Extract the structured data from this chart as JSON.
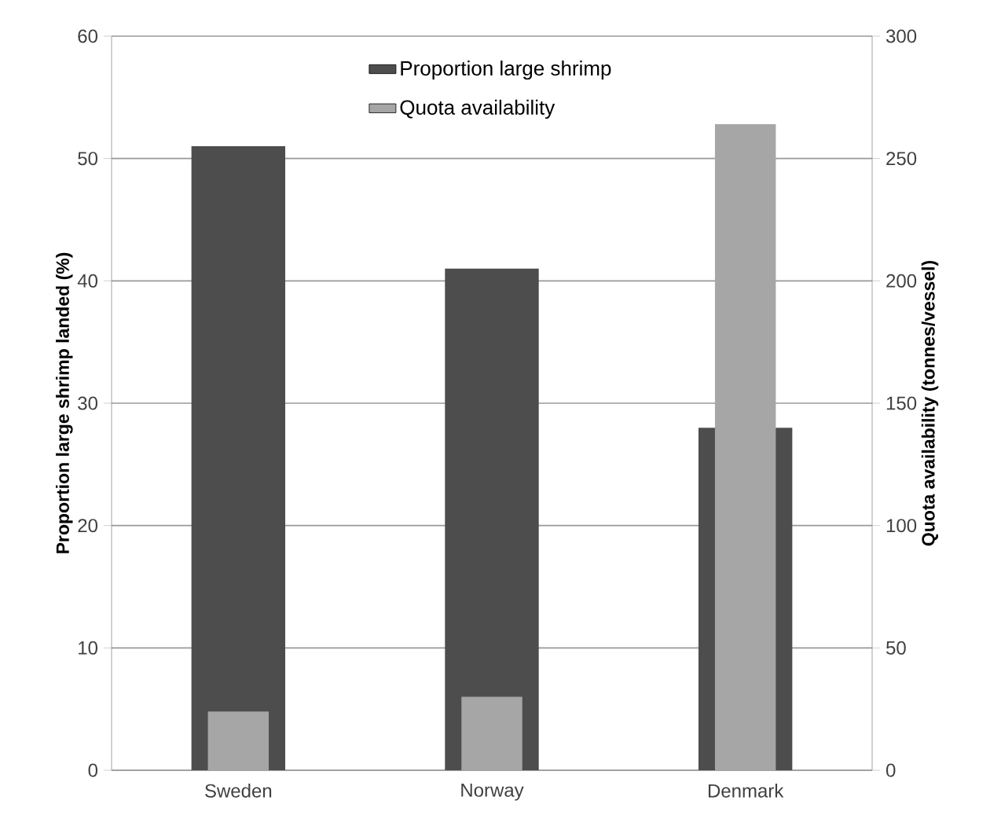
{
  "chart_data": {
    "type": "bar",
    "categories": [
      "Sweden",
      "Norway",
      "Denmark"
    ],
    "ylabel": "Proportion large shrimp landed (%)",
    "y2label": "Quota availability (tonnes/vessel)",
    "ylim": [
      0,
      60
    ],
    "yticks": [
      0,
      10,
      20,
      30,
      40,
      50,
      60
    ],
    "y2lim": [
      0,
      300
    ],
    "y2ticks": [
      0,
      50,
      100,
      150,
      200,
      250,
      300
    ],
    "grid": "y",
    "legend": "top",
    "series": [
      {
        "name": "Proportion large shrimp",
        "color": "#4d4d4d",
        "values": [
          51,
          41,
          28
        ]
      },
      {
        "name": "Quota availability",
        "color": "#a6a6a6",
        "values": [
          24,
          30,
          264
        ],
        "axis": "y2"
      }
    ]
  }
}
